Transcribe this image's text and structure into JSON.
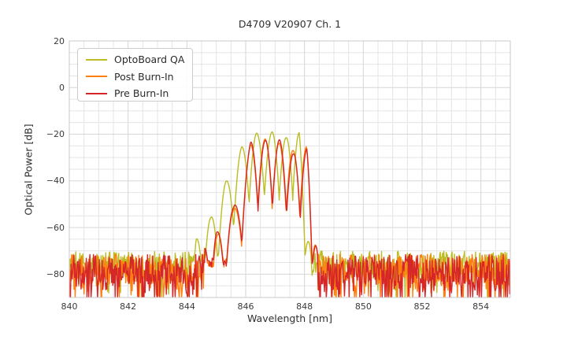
{
  "chart_data": {
    "type": "line",
    "title": "D4709 V20907 Ch. 1",
    "xlabel": "Wavelength [nm]",
    "ylabel": "Optical Power [dB]",
    "xlim": [
      840,
      855
    ],
    "ylim": [
      -90,
      20
    ],
    "xticks": [
      840,
      842,
      844,
      846,
      848,
      850,
      852,
      854
    ],
    "yticks": [
      20,
      0,
      -20,
      -40,
      -60,
      -80
    ],
    "x_minor_step_nm": 0.5,
    "y_minor_step_db": 5,
    "grid": "major+minor light gray on white",
    "legend_position": "upper-left",
    "noise_floor_db": [
      -88,
      -70
    ],
    "signal_band_nm": [
      844.3,
      848.5
    ],
    "mode_spacing_nm": 0.5,
    "series": [
      {
        "name": "OptoBoard QA",
        "color": "#bcbd22",
        "seed": 7,
        "mode_depth_db": 28,
        "valley_floor_db": -73.5,
        "noise": {
          "mean_db": -76,
          "spread_db": 12,
          "dip_prob": 0.1,
          "dip_extra_db": 11
        },
        "peaks": [
          [
            844.1,
            -72.0
          ],
          [
            844.32,
            -65.0
          ],
          [
            844.8,
            -56.0
          ],
          [
            845.32,
            -40.5
          ],
          [
            845.86,
            -25.5
          ],
          [
            846.37,
            -19.5
          ],
          [
            846.9,
            -19.0
          ],
          [
            847.38,
            -21.5
          ],
          [
            847.82,
            -19.3
          ],
          [
            848.22,
            -72.0
          ]
        ]
      },
      {
        "name": "Post Burn-In",
        "color": "#ff7f0e",
        "seed": 1234,
        "mode_depth_db": 29,
        "valley_floor_db": -75,
        "noise": {
          "mean_db": -78,
          "spread_db": 13,
          "dip_prob": 0.26,
          "dip_extra_db": 14
        },
        "peaks": [
          [
            844.58,
            -69.0
          ],
          [
            845.05,
            -63.0
          ],
          [
            845.56,
            -53.5
          ],
          [
            846.16,
            -24.5
          ],
          [
            846.66,
            -22.0
          ],
          [
            847.14,
            -23.8
          ],
          [
            847.61,
            -27.0
          ],
          [
            848.07,
            -25.3
          ],
          [
            848.44,
            -72.0
          ]
        ]
      },
      {
        "name": "Pre Burn-In",
        "color": "#d62728",
        "seed": 99,
        "mode_depth_db": 30,
        "valley_floor_db": -75,
        "noise": {
          "mean_db": -78,
          "spread_db": 13,
          "dip_prob": 0.26,
          "dip_extra_db": 14
        },
        "peaks": [
          [
            844.6,
            -69.0
          ],
          [
            845.02,
            -62.0
          ],
          [
            845.57,
            -52.0
          ],
          [
            846.17,
            -23.3
          ],
          [
            846.67,
            -22.6
          ],
          [
            847.15,
            -22.3
          ],
          [
            847.63,
            -28.5
          ],
          [
            848.08,
            -26.3
          ],
          [
            848.45,
            -72.0
          ]
        ]
      }
    ]
  }
}
